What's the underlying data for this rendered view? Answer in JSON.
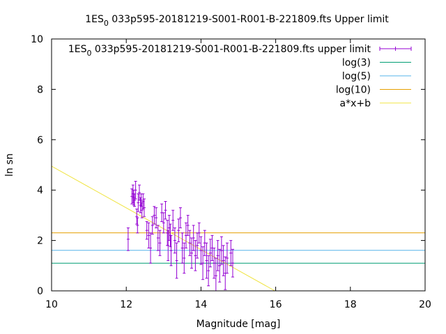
{
  "chart_data": {
    "type": "scatter",
    "title_prefix": "1ES",
    "title_subscript": "0",
    "title_rest": "033p595-20181219-S001-R001-B-221809.fts Upper limit",
    "xlabel": "Magnitude [mag]",
    "ylabel": "ln sn",
    "xlim": [
      10,
      20
    ],
    "ylim": [
      0,
      10
    ],
    "xticks": [
      "10",
      "12",
      "14",
      "16",
      "18",
      "20"
    ],
    "yticks": [
      "0",
      "2",
      "4",
      "6",
      "8",
      "10"
    ],
    "legend_position": "top-right",
    "series": [
      {
        "name_prefix": "1ES",
        "name_subscript": "0",
        "name_rest": "033p595-20181219-S001-R001-B-221809.fts upper limit",
        "kind": "errorbar",
        "color": "#9400d3",
        "points": [
          [
            12.05,
            2.05,
            0.45
          ],
          [
            12.15,
            3.75,
            0.3
          ],
          [
            12.18,
            3.85,
            0.35
          ],
          [
            12.2,
            3.7,
            0.3
          ],
          [
            12.22,
            3.6,
            0.25
          ],
          [
            12.25,
            4.0,
            0.35
          ],
          [
            12.28,
            2.95,
            0.3
          ],
          [
            12.3,
            2.6,
            0.3
          ],
          [
            12.32,
            3.5,
            0.35
          ],
          [
            12.35,
            3.9,
            0.3
          ],
          [
            12.38,
            3.4,
            0.3
          ],
          [
            12.4,
            3.6,
            0.25
          ],
          [
            12.42,
            3.2,
            0.3
          ],
          [
            12.45,
            3.55,
            0.3
          ],
          [
            12.48,
            3.3,
            0.35
          ],
          [
            12.55,
            2.4,
            0.35
          ],
          [
            12.6,
            2.2,
            0.5
          ],
          [
            12.65,
            1.7,
            0.6
          ],
          [
            12.7,
            2.6,
            0.35
          ],
          [
            12.75,
            3.0,
            0.35
          ],
          [
            12.8,
            2.9,
            0.4
          ],
          [
            12.85,
            2.1,
            0.5
          ],
          [
            12.9,
            1.9,
            0.5
          ],
          [
            12.95,
            3.1,
            0.35
          ],
          [
            13.0,
            2.7,
            0.4
          ],
          [
            13.05,
            3.2,
            0.35
          ],
          [
            13.1,
            2.3,
            0.5
          ],
          [
            13.12,
            1.8,
            0.6
          ],
          [
            13.15,
            2.5,
            0.5
          ],
          [
            13.18,
            2.2,
            0.45
          ],
          [
            13.2,
            1.6,
            0.6
          ],
          [
            13.25,
            2.8,
            0.4
          ],
          [
            13.3,
            2.0,
            0.5
          ],
          [
            13.35,
            1.2,
            0.7
          ],
          [
            13.4,
            2.4,
            0.45
          ],
          [
            13.45,
            2.9,
            0.4
          ],
          [
            13.5,
            1.7,
            0.6
          ],
          [
            13.55,
            1.3,
            0.6
          ],
          [
            13.6,
            2.2,
            0.5
          ],
          [
            13.65,
            2.6,
            0.4
          ],
          [
            13.7,
            1.9,
            0.5
          ],
          [
            13.75,
            1.5,
            0.6
          ],
          [
            13.8,
            2.1,
            0.5
          ],
          [
            13.85,
            1.4,
            0.6
          ],
          [
            13.9,
            1.8,
            0.5
          ],
          [
            13.95,
            2.3,
            0.4
          ],
          [
            14.0,
            1.6,
            0.55
          ],
          [
            14.05,
            1.1,
            0.65
          ],
          [
            14.1,
            1.9,
            0.5
          ],
          [
            14.15,
            1.2,
            0.7
          ],
          [
            14.2,
            0.8,
            0.6
          ],
          [
            14.25,
            1.5,
            0.55
          ],
          [
            14.3,
            1.7,
            0.5
          ],
          [
            14.35,
            1.1,
            0.6
          ],
          [
            14.4,
            0.6,
            0.7
          ],
          [
            14.45,
            1.4,
            0.6
          ],
          [
            14.5,
            1.0,
            0.65
          ],
          [
            14.55,
            1.6,
            0.55
          ],
          [
            14.6,
            1.2,
            0.6
          ],
          [
            14.65,
            0.7,
            0.65
          ],
          [
            14.7,
            1.3,
            0.6
          ],
          [
            14.8,
            1.5,
            0.5
          ],
          [
            14.85,
            1.1,
            0.55
          ]
        ]
      },
      {
        "name": "log(3)",
        "kind": "hline",
        "y": 1.0986,
        "color": "#009e73"
      },
      {
        "name": "log(5)",
        "kind": "hline",
        "y": 1.6094,
        "color": "#56b4e9"
      },
      {
        "name": "log(10)",
        "kind": "hline",
        "y": 2.3026,
        "color": "#e69f00"
      },
      {
        "name": "a*x+b",
        "kind": "fitline",
        "x": [
          10,
          15.98
        ],
        "y": [
          4.95,
          0.0
        ],
        "color": "#f0e442"
      }
    ]
  }
}
